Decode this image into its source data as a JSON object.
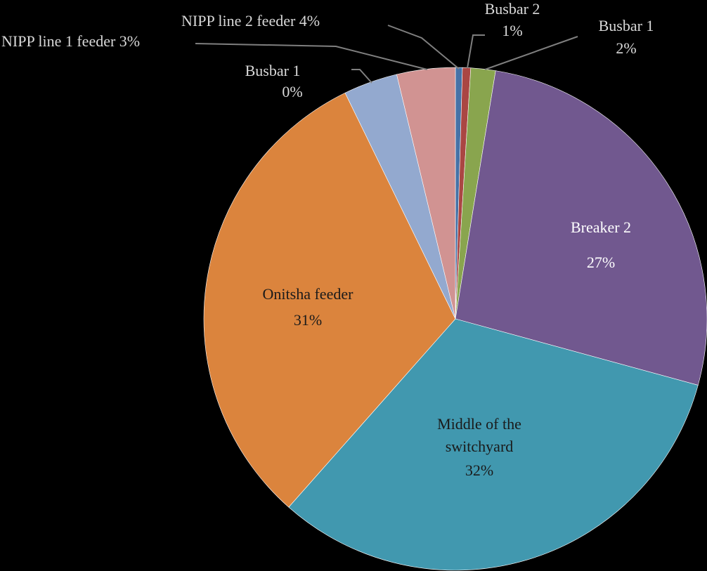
{
  "chart_data": {
    "type": "pie",
    "title": "",
    "center": [
      648,
      454
    ],
    "radius": 358,
    "start_angle_deg": 0,
    "slices": [
      {
        "label": "Busbar 1",
        "percent_label": "0%",
        "value": 0.45,
        "color": "#4572a7",
        "start": 0,
        "end": 1.6
      },
      {
        "label": "Busbar 2",
        "percent_label": "1%",
        "value": 0.55,
        "color": "#aa4643",
        "start": 1.6,
        "end": 3.5
      },
      {
        "label": "Busbar 1",
        "percent_label": "2%",
        "value": 1.6,
        "color": "#89a54e",
        "start": 3.5,
        "end": 9.2
      },
      {
        "label": "Breaker 2",
        "percent_label": "27%",
        "value": 26.8,
        "color": "#71588f",
        "start": 9.2,
        "end": 105.3
      },
      {
        "label": "Middle of the switchyard",
        "percent_label": "32%",
        "value": 32.3,
        "color": "#4198af",
        "start": 105.3,
        "end": 221.5
      },
      {
        "label": "Onitsha feeder",
        "percent_label": "31%",
        "value": 31.2,
        "color": "#db843d",
        "start": 221.5,
        "end": 334.0
      },
      {
        "label": "NIPP line 1 feeder",
        "percent_label": "3%",
        "value": 3.5,
        "color": "#93a9cf",
        "start": 334.0,
        "end": 346.5
      },
      {
        "label": "NIPP line 2 feeder",
        "percent_label": "4%",
        "value": 3.75,
        "color": "#d19392",
        "start": 346.5,
        "end": 360
      }
    ],
    "legend": null,
    "grid": false
  },
  "labels": {
    "nipp2": "NIPP line 2 feeder 4%",
    "nipp1": "NIPP line 1 feeder 3%",
    "busbar1_zero_name": "Busbar 1",
    "busbar1_zero_pct": "0%",
    "busbar2_name": "Busbar 2",
    "busbar2_pct": "1%",
    "busbar1_two_name": "Busbar 1",
    "busbar1_two_pct": "2%",
    "breaker2_name": "Breaker 2",
    "breaker2_pct": "27%",
    "onitsha_name": "Onitsha feeder",
    "onitsha_pct": "31%",
    "middle_line1": "Middle of the",
    "middle_line2": "switchyard",
    "middle_pct": "32%"
  }
}
